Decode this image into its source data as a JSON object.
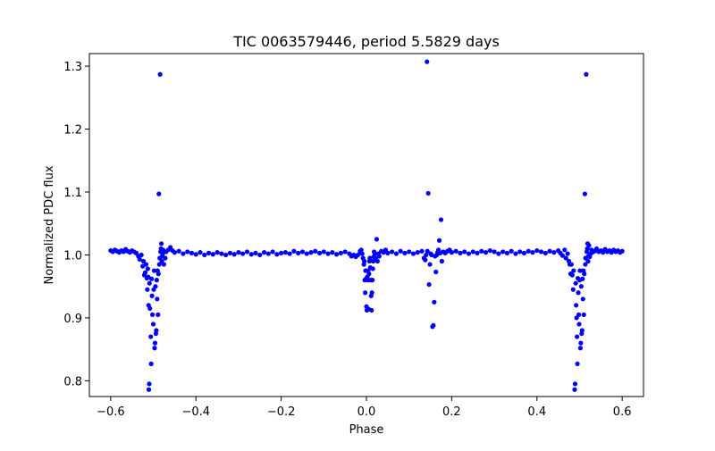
{
  "chart_data": {
    "type": "scatter",
    "title": "TIC 0063579446, period 5.5829 days",
    "xlabel": "Phase",
    "ylabel": "Normalized PDC flux",
    "xlim": [
      -0.65,
      0.65
    ],
    "ylim": [
      0.775,
      1.32
    ],
    "xticks": [
      -0.6,
      -0.4,
      -0.2,
      0.0,
      0.2,
      0.4,
      0.6
    ],
    "xtick_labels": [
      "−0.6",
      "−0.4",
      "−0.2",
      "0.0",
      "0.2",
      "0.4",
      "0.6"
    ],
    "yticks": [
      0.8,
      0.9,
      1.0,
      1.1,
      1.2,
      1.3
    ],
    "ytick_labels": [
      "0.8",
      "0.9",
      "1.0",
      "1.1",
      "1.2",
      "1.3"
    ],
    "grid": false,
    "marker_color": "#0000ff",
    "series": [
      {
        "name": "",
        "points": [
          [
            -0.6,
            1.007
          ],
          [
            -0.595,
            1.005
          ],
          [
            -0.59,
            1.008
          ],
          [
            -0.585,
            1.006
          ],
          [
            -0.58,
            1.004
          ],
          [
            -0.575,
            1.007
          ],
          [
            -0.57,
            1.005
          ],
          [
            -0.565,
            1.009
          ],
          [
            -0.56,
            1.006
          ],
          [
            -0.555,
            1.004
          ],
          [
            -0.55,
            1.007
          ],
          [
            -0.545,
            1.005
          ],
          [
            -0.54,
            1.003
          ],
          [
            -0.535,
            0.998
          ],
          [
            -0.532,
            0.993
          ],
          [
            -0.528,
            1.0
          ],
          [
            -0.525,
            0.982
          ],
          [
            -0.523,
            0.99
          ],
          [
            -0.521,
            0.968
          ],
          [
            -0.519,
            0.972
          ],
          [
            -0.517,
            0.985
          ],
          [
            -0.515,
            0.963
          ],
          [
            -0.514,
            0.945
          ],
          [
            -0.513,
            0.978
          ],
          [
            -0.512,
            0.965
          ],
          [
            -0.511,
            0.92
          ],
          [
            -0.5105,
            0.786
          ],
          [
            -0.5095,
            0.795
          ],
          [
            -0.509,
            0.955
          ],
          [
            -0.508,
            0.915
          ],
          [
            -0.506,
            0.87
          ],
          [
            -0.505,
            0.827
          ],
          [
            -0.504,
            0.962
          ],
          [
            -0.503,
            0.935
          ],
          [
            -0.502,
            0.905
          ],
          [
            -0.5,
            0.89
          ],
          [
            -0.499,
            0.945
          ],
          [
            -0.498,
            0.975
          ],
          [
            -0.497,
            0.852
          ],
          [
            -0.496,
            0.86
          ],
          [
            -0.495,
            0.95
          ],
          [
            -0.494,
            0.875
          ],
          [
            -0.493,
            0.88
          ],
          [
            -0.492,
            0.96
          ],
          [
            -0.491,
            0.93
          ],
          [
            -0.49,
            0.975
          ],
          [
            -0.489,
            0.905
          ],
          [
            -0.488,
            0.97
          ],
          [
            -0.487,
            1.097
          ],
          [
            -0.486,
            0.985
          ],
          [
            -0.485,
            0.995
          ],
          [
            -0.484,
            1.287
          ],
          [
            -0.483,
            1.005
          ],
          [
            -0.482,
            1.01
          ],
          [
            -0.481,
            1.018
          ],
          [
            -0.48,
            0.99
          ],
          [
            -0.479,
            0.998
          ],
          [
            -0.478,
            1.002
          ],
          [
            -0.477,
            1.008
          ],
          [
            -0.475,
            0.985
          ],
          [
            -0.472,
            0.995
          ],
          [
            -0.47,
            1.005
          ],
          [
            -0.465,
            1.008
          ],
          [
            -0.46,
            1.012
          ],
          [
            -0.455,
            1.007
          ],
          [
            -0.45,
            1.004
          ],
          [
            -0.44,
            1.006
          ],
          [
            -0.43,
            1.002
          ],
          [
            -0.42,
            1.005
          ],
          [
            -0.41,
            1.003
          ],
          [
            -0.4,
            1.001
          ],
          [
            -0.39,
            1.004
          ],
          [
            -0.38,
            1.0
          ],
          [
            -0.37,
            1.003
          ],
          [
            -0.36,
            1.001
          ],
          [
            -0.35,
            1.004
          ],
          [
            -0.34,
            1.002
          ],
          [
            -0.33,
            1.0
          ],
          [
            -0.32,
            1.003
          ],
          [
            -0.31,
            1.001
          ],
          [
            -0.3,
            1.004
          ],
          [
            -0.29,
            1.002
          ],
          [
            -0.28,
            1.005
          ],
          [
            -0.27,
            1.001
          ],
          [
            -0.26,
            1.003
          ],
          [
            -0.25,
            1.0
          ],
          [
            -0.24,
            1.004
          ],
          [
            -0.23,
            1.002
          ],
          [
            -0.22,
            1.005
          ],
          [
            -0.21,
            1.001
          ],
          [
            -0.2,
            1.003
          ],
          [
            -0.19,
            1.004
          ],
          [
            -0.18,
            1.002
          ],
          [
            -0.17,
            1.006
          ],
          [
            -0.16,
            1.003
          ],
          [
            -0.15,
            1.005
          ],
          [
            -0.14,
            1.002
          ],
          [
            -0.13,
            1.004
          ],
          [
            -0.12,
            1.006
          ],
          [
            -0.11,
            1.003
          ],
          [
            -0.1,
            1.005
          ],
          [
            -0.09,
            1.002
          ],
          [
            -0.08,
            1.004
          ],
          [
            -0.07,
            1.001
          ],
          [
            -0.06,
            1.003
          ],
          [
            -0.05,
            1.005
          ],
          [
            -0.04,
            1.002
          ],
          [
            -0.035,
            0.998
          ],
          [
            -0.03,
            1.0
          ],
          [
            -0.025,
            0.997
          ],
          [
            -0.02,
            1.0
          ],
          [
            -0.015,
            1.006
          ],
          [
            -0.012,
            1.008
          ],
          [
            -0.01,
            1.002
          ],
          [
            -0.008,
            0.995
          ],
          [
            -0.006,
            0.985
          ],
          [
            -0.005,
            0.99
          ],
          [
            -0.004,
            0.96
          ],
          [
            -0.003,
            0.94
          ],
          [
            -0.002,
            0.975
          ],
          [
            -0.001,
            0.962
          ],
          [
            0.0,
            0.918
          ],
          [
            0.001,
            0.912
          ],
          [
            0.002,
            0.965
          ],
          [
            0.003,
            0.96
          ],
          [
            0.004,
            0.975
          ],
          [
            0.005,
            0.914
          ],
          [
            0.006,
            0.97
          ],
          [
            0.007,
            0.99
          ],
          [
            0.008,
            0.995
          ],
          [
            0.009,
            0.98
          ],
          [
            0.01,
            0.96
          ],
          [
            0.011,
            0.935
          ],
          [
            0.012,
            0.912
          ],
          [
            0.013,
            0.94
          ],
          [
            0.014,
            0.96
          ],
          [
            0.015,
            0.978
          ],
          [
            0.016,
            0.99
          ],
          [
            0.017,
            0.997
          ],
          [
            0.018,
            1.005
          ],
          [
            0.02,
            1.002
          ],
          [
            0.022,
            0.995
          ],
          [
            0.024,
            1.025
          ],
          [
            0.026,
            0.99
          ],
          [
            0.028,
            1.002
          ],
          [
            0.03,
            0.998
          ],
          [
            0.035,
            1.006
          ],
          [
            0.04,
            1.004
          ],
          [
            0.045,
            1.008
          ],
          [
            0.05,
            1.003
          ],
          [
            0.06,
            1.005
          ],
          [
            0.07,
            1.002
          ],
          [
            0.08,
            1.006
          ],
          [
            0.09,
            1.003
          ],
          [
            0.1,
            1.005
          ],
          [
            0.11,
            1.002
          ],
          [
            0.12,
            1.004
          ],
          [
            0.13,
            1.006
          ],
          [
            0.135,
            0.995
          ],
          [
            0.138,
            0.992
          ],
          [
            0.14,
            1.0
          ],
          [
            0.142,
            1.307
          ],
          [
            0.143,
            1.006
          ],
          [
            0.145,
            1.098
          ],
          [
            0.147,
            0.953
          ],
          [
            0.149,
            0.985
          ],
          [
            0.151,
            1.002
          ],
          [
            0.153,
            1.0
          ],
          [
            0.155,
            0.886
          ],
          [
            0.157,
            0.888
          ],
          [
            0.159,
            0.925
          ],
          [
            0.161,
            0.998
          ],
          [
            0.163,
            0.973
          ],
          [
            0.165,
            1.0
          ],
          [
            0.167,
            1.004
          ],
          [
            0.169,
            1.008
          ],
          [
            0.171,
            1.023
          ],
          [
            0.173,
            1.003
          ],
          [
            0.175,
            1.056
          ],
          [
            0.177,
            0.99
          ],
          [
            0.18,
            1.005
          ],
          [
            0.185,
            1.003
          ],
          [
            0.19,
            1.006
          ],
          [
            0.195,
            1.008
          ],
          [
            0.2,
            1.004
          ],
          [
            0.21,
            1.006
          ],
          [
            0.22,
            1.003
          ],
          [
            0.23,
            1.005
          ],
          [
            0.24,
            1.002
          ],
          [
            0.25,
            1.005
          ],
          [
            0.26,
            1.003
          ],
          [
            0.27,
            1.006
          ],
          [
            0.28,
            1.004
          ],
          [
            0.29,
            1.007
          ],
          [
            0.3,
            1.005
          ],
          [
            0.31,
            1.002
          ],
          [
            0.32,
            1.005
          ],
          [
            0.33,
            1.003
          ],
          [
            0.34,
            1.006
          ],
          [
            0.35,
            1.002
          ],
          [
            0.36,
            1.005
          ],
          [
            0.37,
            1.003
          ],
          [
            0.38,
            1.006
          ],
          [
            0.39,
            1.004
          ],
          [
            0.4,
            1.007
          ],
          [
            0.41,
            1.005
          ],
          [
            0.42,
            1.003
          ],
          [
            0.43,
            1.006
          ],
          [
            0.44,
            1.004
          ],
          [
            0.45,
            1.007
          ],
          [
            0.455,
            1.003
          ],
          [
            0.46,
            0.999
          ],
          [
            0.465,
            1.008
          ],
          [
            0.468,
            0.995
          ],
          [
            0.472,
            1.002
          ],
          [
            0.475,
            0.99
          ],
          [
            0.477,
            0.985
          ],
          [
            0.479,
            0.97
          ],
          [
            0.481,
            0.985
          ],
          [
            0.483,
            0.968
          ],
          [
            0.485,
            0.945
          ],
          [
            0.486,
            0.975
          ],
          [
            0.4885,
            0.786
          ],
          [
            0.4895,
            0.795
          ],
          [
            0.491,
            0.955
          ],
          [
            0.492,
            0.92
          ],
          [
            0.493,
            0.9
          ],
          [
            0.494,
            0.87
          ],
          [
            0.495,
            0.827
          ],
          [
            0.496,
            0.963
          ],
          [
            0.497,
            0.94
          ],
          [
            0.498,
            0.905
          ],
          [
            0.499,
            0.89
          ],
          [
            0.5,
            0.96
          ],
          [
            0.501,
            0.975
          ],
          [
            0.502,
            0.852
          ],
          [
            0.503,
            0.86
          ],
          [
            0.504,
            0.95
          ],
          [
            0.505,
            0.875
          ],
          [
            0.506,
            0.88
          ],
          [
            0.507,
            0.962
          ],
          [
            0.508,
            0.93
          ],
          [
            0.509,
            0.975
          ],
          [
            0.51,
            0.905
          ],
          [
            0.511,
            0.97
          ],
          [
            0.5125,
            1.097
          ],
          [
            0.5135,
            0.985
          ],
          [
            0.514,
            0.995
          ],
          [
            0.5155,
            1.287
          ],
          [
            0.517,
            1.005
          ],
          [
            0.518,
            1.01
          ],
          [
            0.519,
            1.018
          ],
          [
            0.52,
            0.99
          ],
          [
            0.521,
            0.998
          ],
          [
            0.522,
            1.015
          ],
          [
            0.524,
            0.997
          ],
          [
            0.526,
            1.002
          ],
          [
            0.528,
            1.008
          ],
          [
            0.53,
            1.004
          ],
          [
            0.535,
            1.006
          ],
          [
            0.54,
            1.01
          ],
          [
            0.545,
            1.005
          ],
          [
            0.55,
            1.007
          ],
          [
            0.555,
            1.004
          ],
          [
            0.56,
            1.009
          ],
          [
            0.565,
            1.005
          ],
          [
            0.57,
            1.007
          ],
          [
            0.575,
            1.004
          ],
          [
            0.58,
            1.008
          ],
          [
            0.585,
            1.005
          ],
          [
            0.59,
            1.007
          ],
          [
            0.595,
            1.004
          ],
          [
            0.6,
            1.006
          ]
        ]
      }
    ]
  }
}
